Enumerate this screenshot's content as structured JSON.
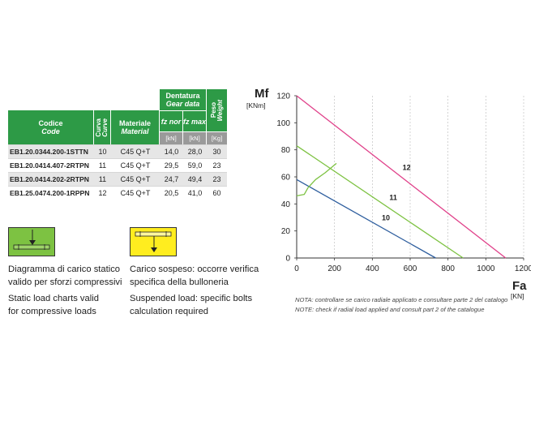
{
  "table": {
    "headers": {
      "codice": "Codice",
      "code": "Code",
      "curva": "Curva",
      "curve": "Curve",
      "materiale": "Materiale",
      "material": "Material",
      "dentatura": "Dentatura",
      "gear_data": "Gear data",
      "fz_nor": "fz nor",
      "fz_max": "fz max",
      "peso": "Peso",
      "weight": "Weight",
      "unit_fz_nor": "[kN]",
      "unit_fz_max": "[kN]",
      "unit_weight": "[Kg]"
    },
    "rows": [
      {
        "code": "EB1.20.0344.200-1STTN",
        "curve": "10",
        "material": "C45 Q+T",
        "fz_nor": "14,0",
        "fz_max": "28,0",
        "weight": "30"
      },
      {
        "code": "EB1.20.0414.407-2RTPN",
        "curve": "11",
        "material": "C45 Q+T",
        "fz_nor": "29,5",
        "fz_max": "59,0",
        "weight": "23"
      },
      {
        "code": "EB1.20.0414.202-2RTPN",
        "curve": "11",
        "material": "C45 Q+T",
        "fz_nor": "24,7",
        "fz_max": "49,4",
        "weight": "23"
      },
      {
        "code": "EB1.25.0474.200-1RPPN",
        "curve": "12",
        "material": "C45 Q+T",
        "fz_nor": "20,5",
        "fz_max": "41,0",
        "weight": "60"
      }
    ]
  },
  "legend": {
    "static": {
      "it_line1": "Diagramma di carico statico",
      "it_line2": "valido per sforzi compressivi",
      "en_line1": "Static load charts valid",
      "en_line2": "for compressive loads",
      "color": "#7dc242"
    },
    "suspended": {
      "it_line1": "Carico sospeso: occorre verifica",
      "it_line2": "specifica della bulloneria",
      "en_line1": "Suspended load: specific bolts",
      "en_line2": "calculation required",
      "color": "#ffed1f"
    }
  },
  "chart_data": {
    "type": "line",
    "ylabel": "Mf",
    "yunit": "[KNm]",
    "xlabel": "Fa",
    "xunit": "[KN]",
    "xlim": [
      0,
      1200
    ],
    "ylim": [
      0,
      120
    ],
    "xticks": [
      0,
      200,
      400,
      600,
      800,
      1000,
      1200
    ],
    "yticks": [
      0,
      20,
      40,
      60,
      80,
      100,
      120
    ],
    "grid": "vertical-dashed",
    "series": [
      {
        "name": "10",
        "color": "#2e5e9e",
        "points": [
          [
            0,
            58
          ],
          [
            735,
            0
          ]
        ],
        "label_at": [
          450,
          28
        ]
      },
      {
        "name": "11",
        "color": "#7dc242",
        "points": [
          [
            0,
            83
          ],
          [
            880,
            0
          ]
        ],
        "label_at": [
          490,
          43
        ]
      },
      {
        "name": "12",
        "color": "#e0418a",
        "points": [
          [
            0,
            120
          ],
          [
            1105,
            0
          ]
        ],
        "label_at": [
          560,
          65
        ]
      }
    ],
    "extra_curve": {
      "color": "#7dc242",
      "points": [
        [
          0,
          46
        ],
        [
          40,
          47
        ],
        [
          60,
          52
        ],
        [
          100,
          58
        ],
        [
          150,
          63
        ],
        [
          210,
          70
        ]
      ]
    }
  },
  "notes": {
    "it": "NOTA: controllare se carico radiale applicato e consultare parte 2 del catalogo",
    "en": "NOTE: check if radial load applied and consult part 2 of the catalogue"
  }
}
